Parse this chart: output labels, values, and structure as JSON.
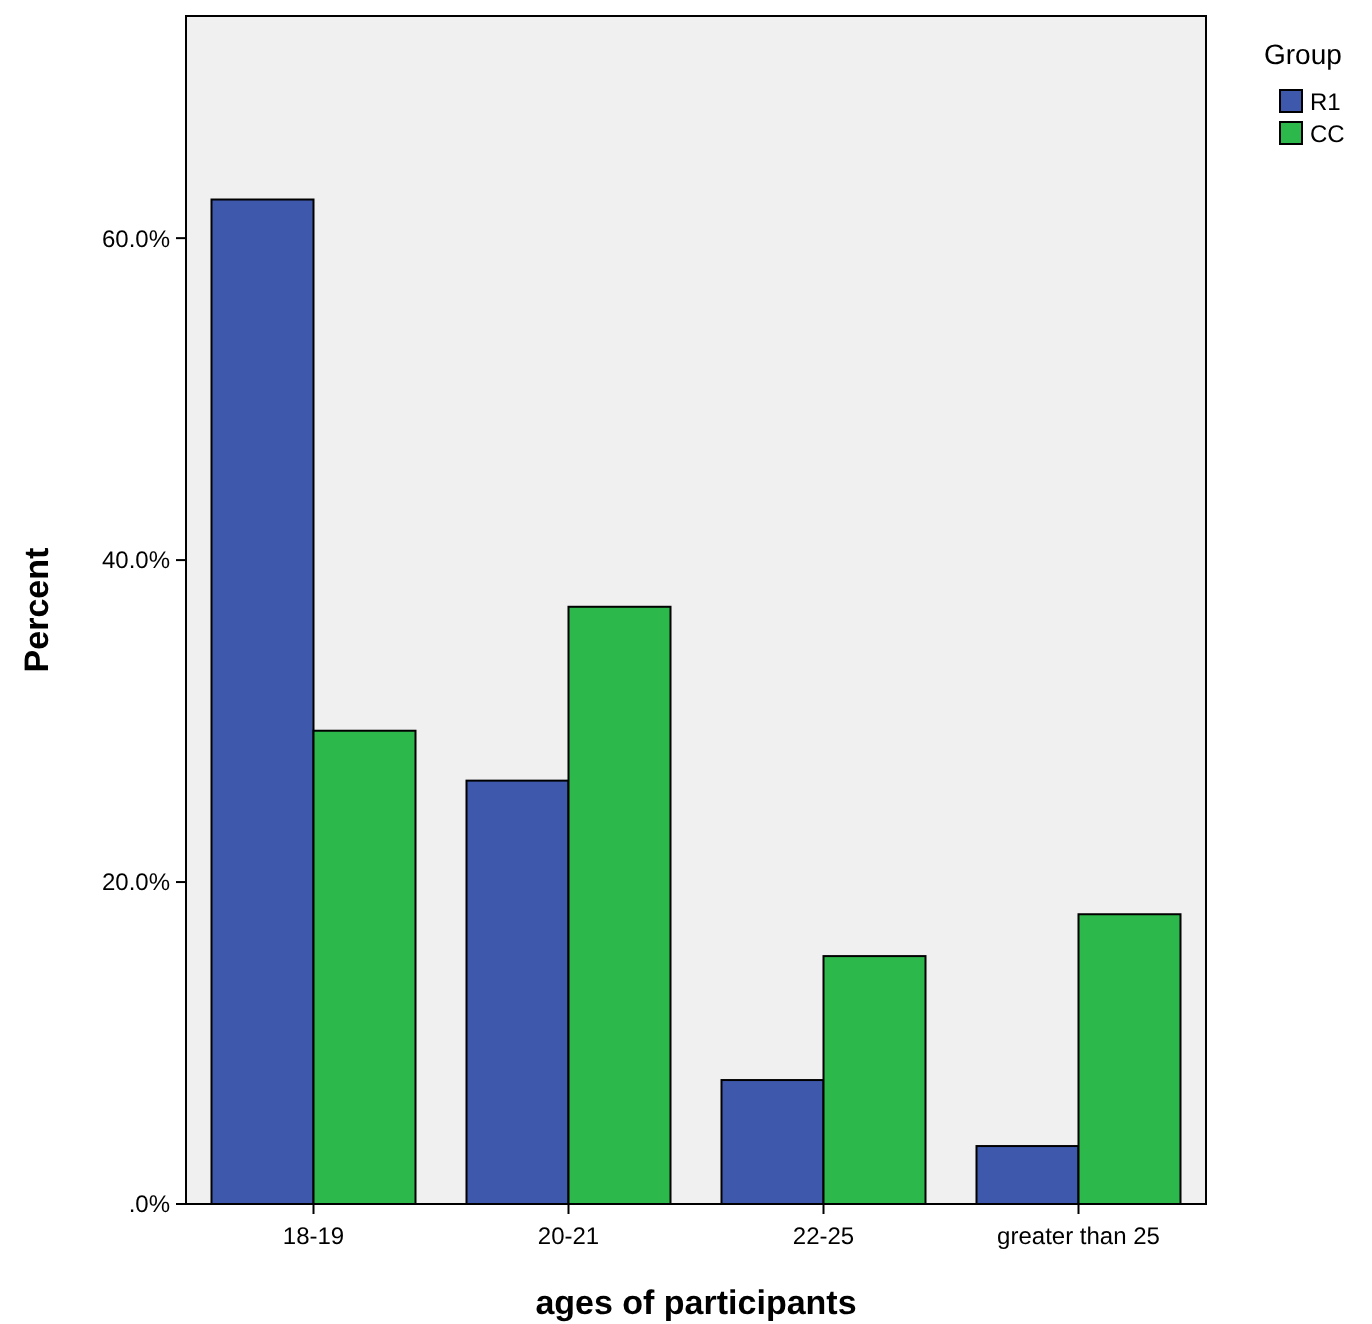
{
  "chart_data": {
    "type": "bar",
    "xlabel": "ages of participants",
    "ylabel": "Percent",
    "legend_title": "Group",
    "legend": "top right",
    "grid": false,
    "categories": [
      "18-19",
      "20-21",
      "22-25",
      "greater than 25"
    ],
    "series": [
      {
        "name": "R1",
        "color": "#3e58ac",
        "values": [
          62.4,
          26.3,
          7.7,
          3.6
        ]
      },
      {
        "name": "CC",
        "color": "#2db84b",
        "values": [
          29.4,
          37.1,
          15.4,
          18.0
        ]
      }
    ],
    "ylim": [
      0,
      73.8
    ],
    "yticks": [
      {
        "value": 0,
        "label": ".0%"
      },
      {
        "value": 20,
        "label": "20.0%"
      },
      {
        "value": 40,
        "label": "40.0%"
      },
      {
        "value": 60,
        "label": "60.0%"
      }
    ]
  }
}
